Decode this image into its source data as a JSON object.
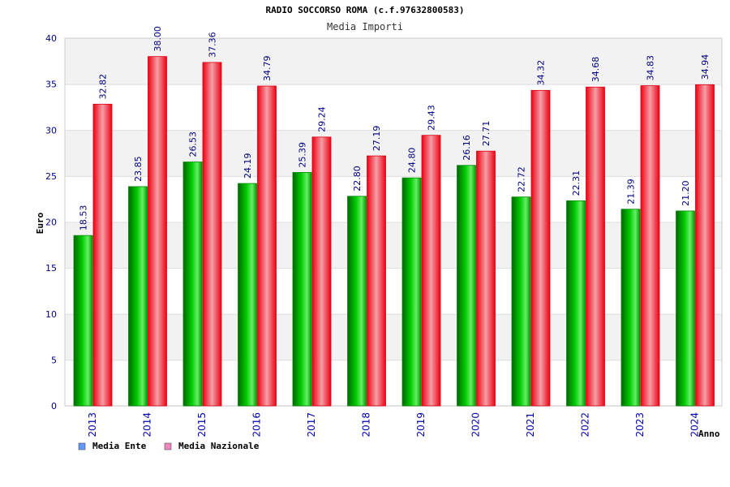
{
  "chart_data": {
    "type": "bar",
    "title": "RADIO SOCCORSO ROMA (c.f.97632800583)",
    "subtitle": "Media Importi",
    "xlabel": "Anno",
    "ylabel": "Euro",
    "ylim": [
      0,
      40
    ],
    "yticks": [
      "0",
      "5",
      "10",
      "15",
      "20",
      "25",
      "30",
      "35",
      "40"
    ],
    "grid": true,
    "legend_position": "bottom-left",
    "categories": [
      "2013",
      "2014",
      "2015",
      "2016",
      "2017",
      "2018",
      "2019",
      "2020",
      "2021",
      "2022",
      "2023",
      "2024"
    ],
    "series": [
      {
        "name": "Media Ente",
        "color": "#00aa00",
        "legend_color": "#6699ff",
        "values": [
          18.53,
          23.85,
          26.53,
          24.19,
          25.39,
          22.8,
          24.8,
          26.16,
          22.72,
          22.31,
          21.39,
          21.2
        ],
        "labels": [
          "18.53",
          "23.85",
          "26.53",
          "24.19",
          "25.39",
          "22.80",
          "24.80",
          "26.16",
          "22.72",
          "22.31",
          "21.39",
          "21.20"
        ]
      },
      {
        "name": "Media Nazionale",
        "color": "#ee1122",
        "legend_color": "#ee88bb",
        "values": [
          32.82,
          38.0,
          37.36,
          34.79,
          29.24,
          27.19,
          29.43,
          27.71,
          34.32,
          34.68,
          34.83,
          34.94
        ],
        "labels": [
          "32.82",
          "38.00",
          "37.36",
          "34.79",
          "29.24",
          "27.19",
          "29.43",
          "27.71",
          "34.32",
          "34.68",
          "34.83",
          "34.94"
        ]
      }
    ]
  }
}
